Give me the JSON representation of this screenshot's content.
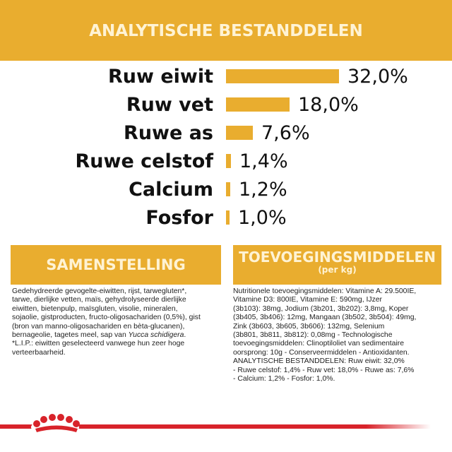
{
  "header": {
    "title": "ANALYTISCHE BESTANDDELEN"
  },
  "chart_data": {
    "type": "bar",
    "orientation": "horizontal",
    "color": "#e9ad2f",
    "categories": [
      "Ruw eiwit",
      "Ruw vet",
      "Ruwe as",
      "Ruwe celstof",
      "Calcium",
      "Fosfor"
    ],
    "values": [
      32.0,
      18.0,
      7.6,
      1.4,
      1.2,
      1.0
    ],
    "value_labels": [
      "32,0%",
      "18,0%",
      "7,6%",
      "1,4%",
      "1,2%",
      "1,0%"
    ]
  },
  "composition": {
    "title": "SAMENSTELLING",
    "lines": [
      "Gedehydreerde gevogelte-eiwitten, rijst, tarwegluten*,",
      "tarwe, dierlijke vetten, maïs, gehydrolyseerde dierlijke",
      "eiwitten, bietenpulp, maïsgluten, visolie, mineralen,",
      "sojaolie, gistproducten, fructo-oligosachariden (0,5%), gist",
      "(bron van manno-oligosachariden en bèta-glucanen),",
      [
        "bernageolie, tagetes meel, sap van ",
        "Yucca schidigera",
        "."
      ],
      "*L.I.P.: eiwitten geselecteerd vanwege hun zeer hoge",
      "verteerbaarheid."
    ]
  },
  "additives": {
    "title": "TOEVOEGINGSMIDDELEN",
    "subtitle": "(per kg)",
    "lines": [
      "Nutritionele toevoegingsmiddelen: Vitamine A: 29.500IE,",
      "Vitamine D3: 800IE, Vitamine E: 590mg, IJzer",
      "(3b103): 38mg, Jodium (3b201, 3b202): 3,8mg, Koper",
      "(3b405, 3b406): 12mg, Mangaan (3b502, 3b504): 49mg,",
      "Zink (3b603, 3b605, 3b606): 132mg, Selenium",
      "(3b801, 3b811, 3b812): 0,08mg - Technologische",
      "toevoegingsmiddelen: Clinoptiloliet van sedimentaire",
      "oorsprong: 10g - Conserveermiddelen - Antioxidanten.",
      "ANALYTISCHE BESTANDDELEN: Ruw eiwit: 32,0%",
      "- Ruwe celstof: 1,4% - Ruw vet: 18,0% - Ruwe as: 7,6%",
      "- Calcium: 1,2% - Fosfor: 1,0%."
    ]
  }
}
